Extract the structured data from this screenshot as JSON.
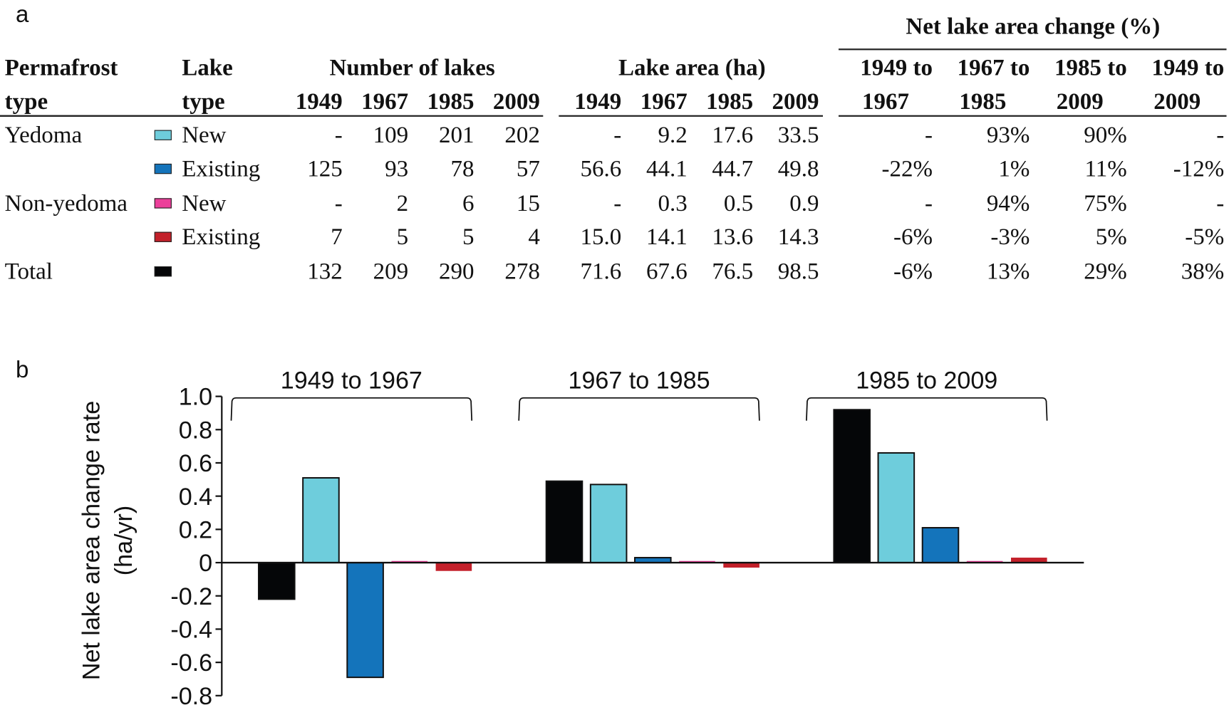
{
  "panel_labels": {
    "a": "a",
    "b": "b"
  },
  "table": {
    "headers": {
      "permafrost_type": [
        "Permafrost",
        "type"
      ],
      "lake_type": [
        "Lake",
        "type"
      ],
      "number_group": "Number of lakes",
      "area_group": "Lake area (ha)",
      "change_group": "Net lake area change (%)",
      "years": [
        "1949",
        "1967",
        "1985",
        "2009"
      ],
      "change_periods": [
        [
          "1949 to",
          "1967"
        ],
        [
          "1967 to",
          "1985"
        ],
        [
          "1985 to",
          "2009"
        ],
        [
          "1949 to",
          "2009"
        ]
      ]
    },
    "rows": [
      {
        "permafrost": "Yedoma",
        "lake_type": "New",
        "color": "#6ecddc",
        "counts": [
          "-",
          "109",
          "201",
          "202"
        ],
        "area": [
          "-",
          "9.2",
          "17.6",
          "33.5"
        ],
        "change": [
          "-",
          "93%",
          "90%",
          "-"
        ]
      },
      {
        "permafrost": "",
        "lake_type": "Existing",
        "color": "#1474bb",
        "counts": [
          "125",
          "93",
          "78",
          "57"
        ],
        "area": [
          "56.6",
          "44.1",
          "44.7",
          "49.8"
        ],
        "change": [
          "-22%",
          "1%",
          "11%",
          "-12%"
        ]
      },
      {
        "permafrost": "Non-yedoma",
        "lake_type": "New",
        "color": "#ec3f9a",
        "counts": [
          "-",
          "2",
          "6",
          "15"
        ],
        "area": [
          "-",
          "0.3",
          "0.5",
          "0.9"
        ],
        "change": [
          "-",
          "94%",
          "75%",
          "-"
        ]
      },
      {
        "permafrost": "",
        "lake_type": "Existing",
        "color": "#c3202a",
        "counts": [
          "7",
          "5",
          "5",
          "4"
        ],
        "area": [
          "15.0",
          "14.1",
          "13.6",
          "14.3"
        ],
        "change": [
          "-6%",
          "-3%",
          "5%",
          "-5%"
        ]
      },
      {
        "permafrost": "Total",
        "lake_type": "",
        "color": "#050608",
        "counts": [
          "132",
          "209",
          "290",
          "278"
        ],
        "area": [
          "71.6",
          "67.6",
          "76.5",
          "98.5"
        ],
        "change": [
          "-6%",
          "13%",
          "29%",
          "38%"
        ]
      }
    ]
  },
  "chart_data": {
    "type": "bar",
    "title": "",
    "xlabel": "",
    "ylabel": "Net lake area change rate (ha/yr)",
    "ylabel_lines": [
      "Net lake area change rate",
      "(ha/yr)"
    ],
    "ylim": [
      -0.8,
      1.0
    ],
    "yticks": [
      "1.0",
      "0.8",
      "0.6",
      "0.4",
      "0.2",
      "0",
      "-0.2",
      "-0.4",
      "-0.6",
      "-0.8"
    ],
    "ytick_values": [
      1.0,
      0.8,
      0.6,
      0.4,
      0.2,
      0,
      -0.2,
      -0.4,
      -0.6,
      -0.8
    ],
    "categories": [
      "1949 to 1967",
      "1967 to 1985",
      "1985 to 2009"
    ],
    "grid": false,
    "series": [
      {
        "name": "Total",
        "color": "#050608",
        "outlined": true,
        "values": [
          -0.22,
          0.49,
          0.92
        ]
      },
      {
        "name": "Yedoma New",
        "color": "#6ecddc",
        "outlined": true,
        "values": [
          0.51,
          0.47,
          0.66
        ]
      },
      {
        "name": "Yedoma Existing",
        "color": "#1474bb",
        "outlined": true,
        "values": [
          -0.69,
          0.03,
          0.21
        ]
      },
      {
        "name": "Non-yedoma New",
        "color": "#ec3f9a",
        "outlined": false,
        "values": [
          0.01,
          0.01,
          0.01
        ]
      },
      {
        "name": "Non-yedoma Existing",
        "color": "#c3202a",
        "outlined": false,
        "values": [
          -0.05,
          -0.03,
          0.03
        ]
      }
    ]
  }
}
